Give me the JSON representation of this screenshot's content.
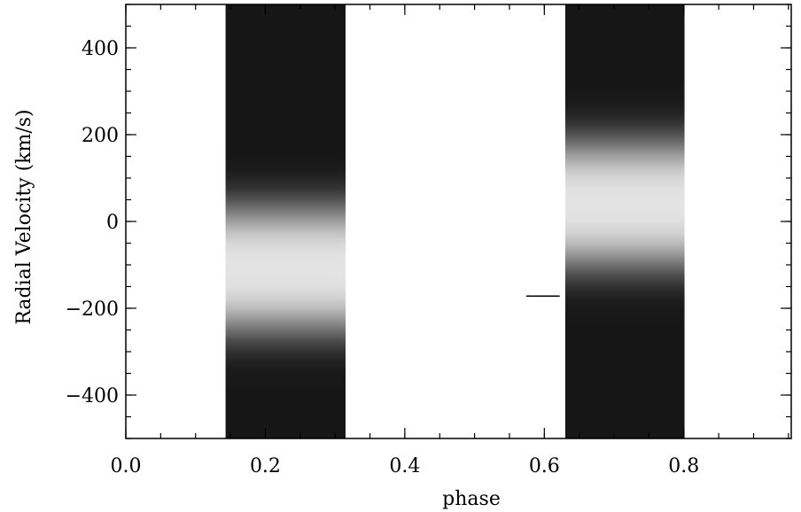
{
  "chart_data": {
    "type": "trail",
    "xlabel": "phase",
    "ylabel": "Radial Velocity (km/s)",
    "xlim": [
      0,
      0.954
    ],
    "ylim": [
      -500,
      500
    ],
    "xticks": [
      {
        "value": 0,
        "label": "0.0"
      },
      0.2,
      0.4,
      0.6,
      0.8
    ],
    "yticks": [
      {
        "value": -400,
        "label": "−400"
      },
      {
        "value": -200,
        "label": "−200"
      },
      0,
      200,
      400
    ],
    "xminor": 0.05,
    "yminor": 50,
    "blocks": [
      {
        "phase": [
          0.143,
          0.315
        ],
        "center": -110,
        "width": 150
      },
      {
        "phase": [
          0.63,
          0.801
        ],
        "center": 40,
        "width": 150
      }
    ],
    "marker": {
      "x": [
        0.574,
        0.622
      ],
      "y": -172
    }
  }
}
